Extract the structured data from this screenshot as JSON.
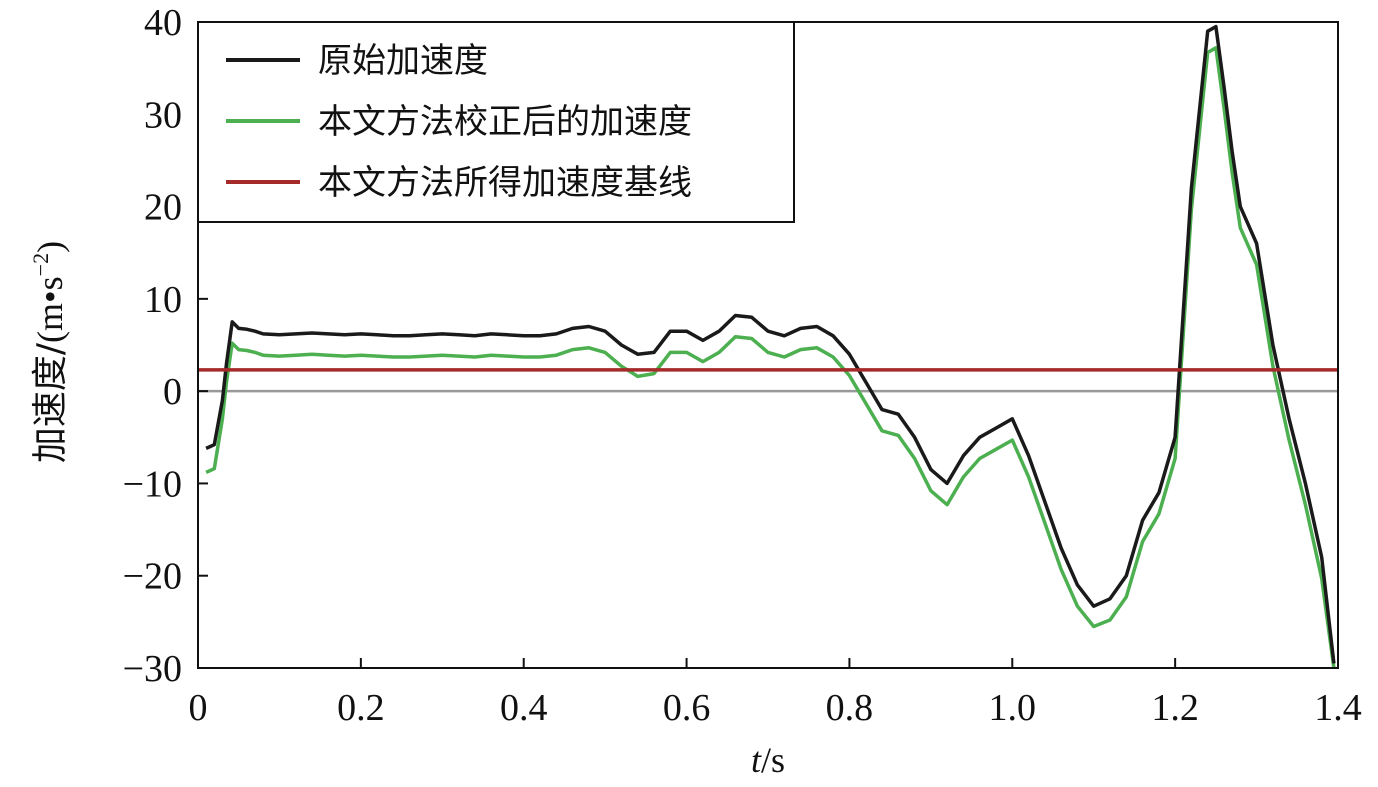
{
  "chart_data": {
    "type": "line",
    "xlabel_italic": "t",
    "xlabel_unit": "/s",
    "ylabel_text": "加速度/",
    "ylabel_unit_prefix": "(m•s",
    "ylabel_unit_exp": "−2",
    "ylabel_unit_suffix": ")",
    "xlim": [
      0,
      1.4
    ],
    "ylim": [
      -30,
      40
    ],
    "x_ticks": [
      0,
      0.2,
      0.4,
      0.6,
      0.8,
      1.0,
      1.2,
      1.4
    ],
    "x_tick_labels": [
      "0",
      "0.2",
      "0.4",
      "0.6",
      "0.8",
      "1.0",
      "1.2",
      "1.4"
    ],
    "y_ticks": [
      -30,
      -20,
      -10,
      0,
      10,
      20,
      30,
      40
    ],
    "y_tick_labels": [
      "−30",
      "−20",
      "−10",
      "0",
      "10",
      "20",
      "30",
      "40"
    ],
    "grid": false,
    "zero_line": true,
    "legend_position": "top-left",
    "colors": {
      "original": "#1a1a1a",
      "corrected": "#4caf50",
      "baseline": "#a52a2a",
      "zero": "#999999"
    },
    "series": [
      {
        "name": "原始加速度",
        "key": "original",
        "x": [
          0.01,
          0.02,
          0.03,
          0.035,
          0.042,
          0.05,
          0.06,
          0.07,
          0.08,
          0.1,
          0.12,
          0.14,
          0.16,
          0.18,
          0.2,
          0.22,
          0.24,
          0.26,
          0.28,
          0.3,
          0.32,
          0.34,
          0.36,
          0.38,
          0.4,
          0.42,
          0.44,
          0.46,
          0.48,
          0.5,
          0.52,
          0.54,
          0.56,
          0.58,
          0.6,
          0.62,
          0.64,
          0.66,
          0.68,
          0.7,
          0.72,
          0.74,
          0.76,
          0.78,
          0.8,
          0.82,
          0.84,
          0.86,
          0.88,
          0.9,
          0.92,
          0.94,
          0.96,
          0.98,
          1.0,
          1.02,
          1.04,
          1.06,
          1.08,
          1.1,
          1.12,
          1.14,
          1.16,
          1.18,
          1.2,
          1.22,
          1.24,
          1.25,
          1.26,
          1.27,
          1.28,
          1.3,
          1.32,
          1.34,
          1.36,
          1.38,
          1.395
        ],
        "y": [
          -6.2,
          -5.8,
          -1,
          3,
          7.5,
          6.8,
          6.7,
          6.5,
          6.2,
          6.1,
          6.2,
          6.3,
          6.2,
          6.1,
          6.2,
          6.1,
          6.0,
          6.0,
          6.1,
          6.2,
          6.1,
          6.0,
          6.2,
          6.1,
          6.0,
          6.0,
          6.2,
          6.8,
          7.0,
          6.5,
          5.0,
          4.0,
          4.2,
          6.5,
          6.5,
          5.5,
          6.5,
          8.2,
          8.0,
          6.5,
          6.0,
          6.8,
          7.0,
          6.0,
          4.0,
          1.0,
          -2.0,
          -2.5,
          -5.0,
          -8.5,
          -10.0,
          -7.0,
          -5.0,
          -4.0,
          -3.0,
          -7.0,
          -12.0,
          -17.0,
          -21.0,
          -23.3,
          -22.5,
          -20.0,
          -14.0,
          -11.0,
          -5.0,
          22.0,
          39.0,
          39.5,
          33.0,
          26.0,
          20.0,
          16.0,
          5.0,
          -3.0,
          -10.0,
          -18.0,
          -29.5
        ]
      },
      {
        "name": "本文方法校正后的加速度",
        "key": "corrected",
        "x": [
          0.01,
          0.02,
          0.03,
          0.035,
          0.042,
          0.05,
          0.06,
          0.07,
          0.08,
          0.1,
          0.12,
          0.14,
          0.16,
          0.18,
          0.2,
          0.22,
          0.24,
          0.26,
          0.28,
          0.3,
          0.32,
          0.34,
          0.36,
          0.38,
          0.4,
          0.42,
          0.44,
          0.46,
          0.48,
          0.5,
          0.52,
          0.54,
          0.56,
          0.58,
          0.6,
          0.62,
          0.64,
          0.66,
          0.68,
          0.7,
          0.72,
          0.74,
          0.76,
          0.78,
          0.8,
          0.82,
          0.84,
          0.86,
          0.88,
          0.9,
          0.92,
          0.94,
          0.96,
          0.98,
          1.0,
          1.02,
          1.04,
          1.06,
          1.08,
          1.1,
          1.12,
          1.14,
          1.16,
          1.18,
          1.2,
          1.22,
          1.24,
          1.25,
          1.26,
          1.27,
          1.28,
          1.3,
          1.32,
          1.34,
          1.36,
          1.38,
          1.395
        ],
        "y": [
          -8.8,
          -8.4,
          -3,
          1,
          5.2,
          4.5,
          4.4,
          4.2,
          3.9,
          3.8,
          3.9,
          4.0,
          3.9,
          3.8,
          3.9,
          3.8,
          3.7,
          3.7,
          3.8,
          3.9,
          3.8,
          3.7,
          3.9,
          3.8,
          3.7,
          3.7,
          3.9,
          4.5,
          4.7,
          4.2,
          2.7,
          1.6,
          1.9,
          4.2,
          4.2,
          3.2,
          4.2,
          5.9,
          5.7,
          4.2,
          3.7,
          4.5,
          4.7,
          3.7,
          1.7,
          -1.3,
          -4.3,
          -4.8,
          -7.3,
          -10.8,
          -12.3,
          -9.3,
          -7.3,
          -6.3,
          -5.3,
          -9.3,
          -14.3,
          -19.3,
          -23.3,
          -25.5,
          -24.8,
          -22.3,
          -16.3,
          -13.3,
          -7.3,
          19.7,
          36.7,
          37.2,
          30.7,
          23.7,
          17.7,
          13.7,
          2.7,
          -5.3,
          -12.3,
          -20.3,
          -30.0
        ]
      },
      {
        "name": "本文方法所得加速度基线",
        "key": "baseline",
        "x": [
          0.0,
          1.4
        ],
        "y": [
          2.3,
          2.3
        ]
      }
    ]
  }
}
